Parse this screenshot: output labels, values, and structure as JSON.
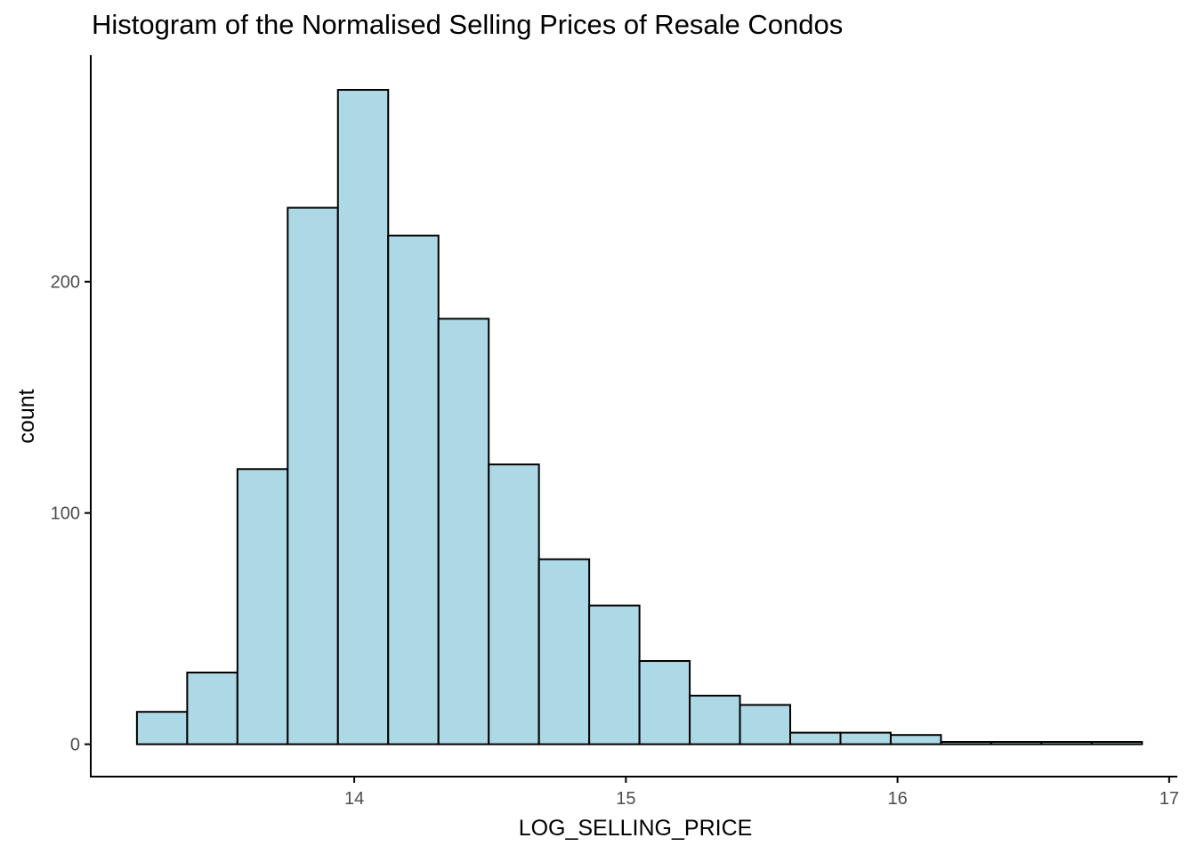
{
  "chart_data": {
    "type": "bar",
    "title": "Histogram of the Normalised Selling Prices of Resale Condos",
    "xlabel": "LOG_SELLING_PRICE",
    "ylabel": "count",
    "xlim": [
      13.03,
      17.03
    ],
    "ylim": [
      -14,
      298
    ],
    "x_ticks": [
      14,
      15,
      16,
      17
    ],
    "y_ticks": [
      0,
      100,
      200
    ],
    "bin_edges": [
      13.2,
      13.385,
      13.57,
      13.755,
      13.94,
      14.125,
      14.31,
      14.495,
      14.68,
      14.865,
      15.05,
      15.235,
      15.42,
      15.605,
      15.79,
      15.975,
      16.16,
      16.345,
      16.53,
      16.715,
      16.9
    ],
    "values": [
      14,
      31,
      119,
      232,
      283,
      220,
      184,
      121,
      80,
      60,
      36,
      21,
      17,
      5,
      5,
      4,
      1,
      1,
      1,
      1
    ],
    "fill_color": "#add8e6",
    "edge_color": "#000000",
    "grid": false,
    "legend": "none"
  }
}
